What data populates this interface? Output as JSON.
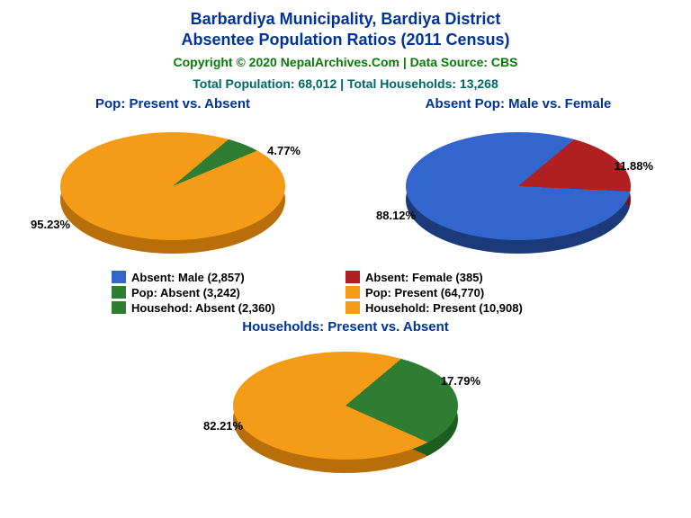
{
  "title_line1": "Barbardiya Municipality, Bardiya District",
  "title_line2": "Absentee Population Ratios (2011 Census)",
  "title_color": "#003399",
  "copyright": "Copyright © 2020 NepalArchives.Com | Data Source: CBS",
  "copyright_color": "#0a7a0a",
  "totals": "Total Population: 68,012 | Total Households: 13,268",
  "totals_color": "#006666",
  "colors": {
    "blue": "#3366cc",
    "blue_dark": "#1a3a7a",
    "red": "#b02020",
    "red_dark": "#701515",
    "green": "#2e7d32",
    "green_dark": "#1b5e20",
    "orange": "#f49b18",
    "orange_dark": "#b86f0a"
  },
  "chart1": {
    "title": "Pop: Present vs. Absent",
    "title_color": "#003399",
    "slices": [
      {
        "pct": 95.23,
        "label": "95.23%",
        "color_key": "orange"
      },
      {
        "pct": 4.77,
        "label": "4.77%",
        "color_key": "green"
      }
    ]
  },
  "chart2": {
    "title": "Absent Pop: Male vs. Female",
    "title_color": "#003399",
    "slices": [
      {
        "pct": 88.12,
        "label": "88.12%",
        "color_key": "blue"
      },
      {
        "pct": 11.88,
        "label": "11.88%",
        "color_key": "red"
      }
    ]
  },
  "chart3": {
    "title": "Households: Present vs. Absent",
    "title_color": "#003399",
    "slices": [
      {
        "pct": 82.21,
        "label": "82.21%",
        "color_key": "orange"
      },
      {
        "pct": 17.79,
        "label": "17.79%",
        "color_key": "green"
      }
    ]
  },
  "legend": [
    {
      "color_key": "blue",
      "label": "Absent: Male (2,857)"
    },
    {
      "color_key": "red",
      "label": "Absent: Female (385)"
    },
    {
      "color_key": "green",
      "label": "Pop: Absent (3,242)"
    },
    {
      "color_key": "orange",
      "label": "Pop: Present (64,770)"
    },
    {
      "color_key": "green",
      "label": "Househod: Absent (2,360)"
    },
    {
      "color_key": "orange",
      "label": "Household: Present (10,908)"
    }
  ]
}
